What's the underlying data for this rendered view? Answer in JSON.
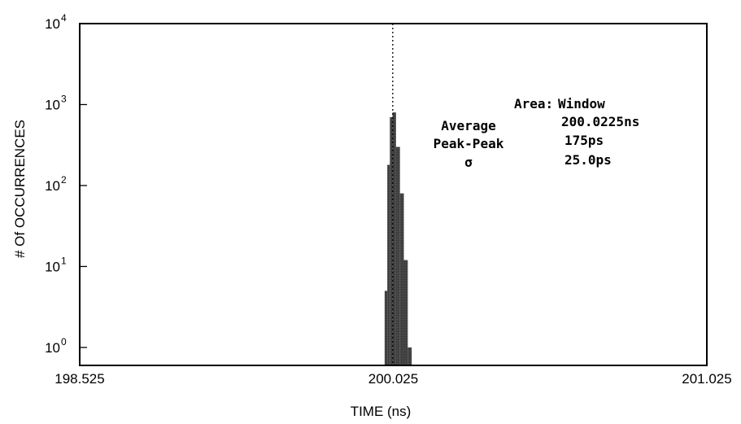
{
  "chart_data": {
    "type": "bar",
    "title": "",
    "xlabel": "TIME (ns)",
    "ylabel": "# Of OCCURRENCES",
    "xlim": [
      198.525,
      201.025
    ],
    "x_ticks": [
      "198.525",
      "200.025",
      "201.025"
    ],
    "y_scale": "log",
    "ylim": [
      0.6,
      10000
    ],
    "y_ticks": [
      {
        "base": "10",
        "exp": "0",
        "value": 1
      },
      {
        "base": "10",
        "exp": "1",
        "value": 10
      },
      {
        "base": "10",
        "exp": "2",
        "value": 100
      },
      {
        "base": "10",
        "exp": "3",
        "value": 1000
      },
      {
        "base": "10",
        "exp": "4",
        "value": 10000
      }
    ],
    "bin_width": 0.0125,
    "bins": [
      {
        "x": 199.99,
        "count": 5
      },
      {
        "x": 200.0025,
        "count": 180
      },
      {
        "x": 200.015,
        "count": 700
      },
      {
        "x": 200.0275,
        "count": 800
      },
      {
        "x": 200.04,
        "count": 300
      },
      {
        "x": 200.0525,
        "count": 80
      },
      {
        "x": 200.065,
        "count": 12
      },
      {
        "x": 200.0775,
        "count": 1
      }
    ],
    "marker_x": 200.0225,
    "grid": false,
    "legend": "none",
    "bar_color": "#3a3a3a",
    "annotations": {
      "area_label": "Area:",
      "area_value": "Window",
      "average_label": "Average",
      "average_value": "200.0225ns",
      "peak_label": "Peak-Peak",
      "peak_value": "175ps",
      "sigma_label": "σ",
      "sigma_value": "25.0ps"
    }
  }
}
